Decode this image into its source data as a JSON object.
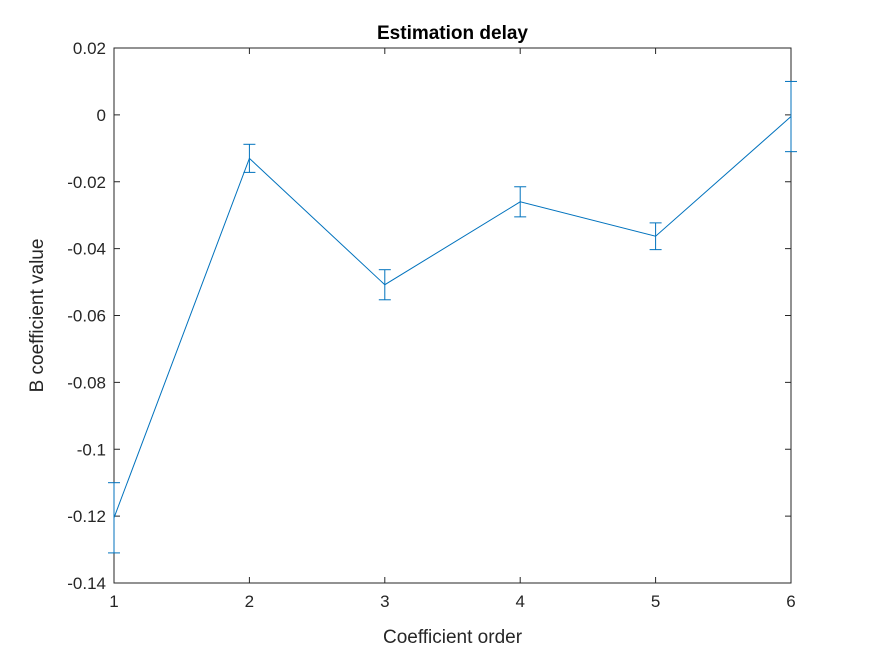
{
  "chart_data": {
    "type": "line",
    "title": "Estimation delay",
    "xlabel": "Coefficient order",
    "ylabel": "B coefficient value",
    "xlim": [
      1,
      6
    ],
    "ylim": [
      -0.14,
      0.02
    ],
    "xticks": [
      "1",
      "2",
      "3",
      "4",
      "5",
      "6"
    ],
    "yticks": [
      "0.02",
      "0",
      "-0.02",
      "-0.04",
      "-0.06",
      "-0.08",
      "-0.1",
      "-0.12",
      "-0.14"
    ],
    "grid": false,
    "series": [
      {
        "x": [
          1,
          2,
          3,
          4,
          5,
          6
        ],
        "values": [
          -0.1205,
          -0.013,
          -0.0508,
          -0.026,
          -0.0363,
          -0.0005
        ],
        "error": [
          0.0105,
          0.0042,
          0.0045,
          0.0045,
          0.004,
          0.0105
        ],
        "color": "#0072BD"
      }
    ]
  }
}
